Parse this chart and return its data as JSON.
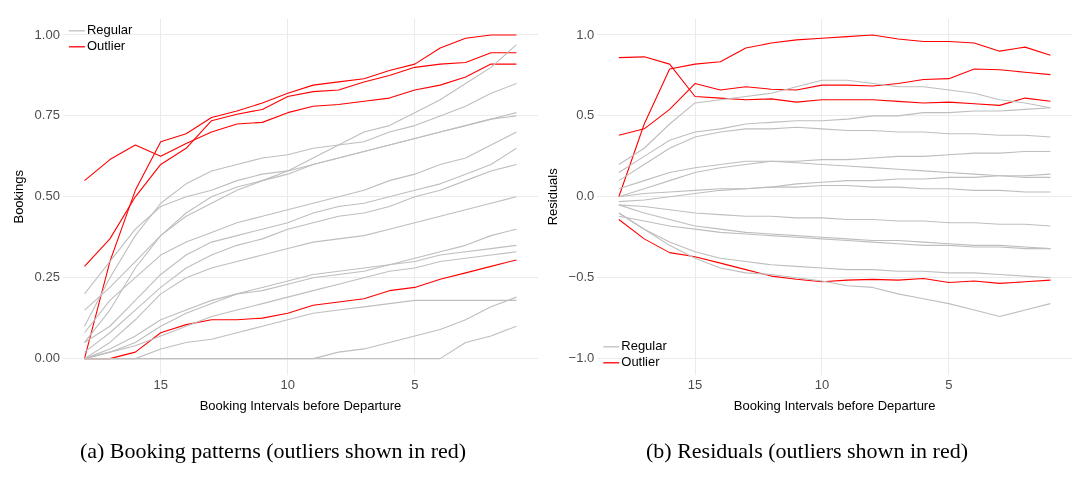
{
  "chart_data": [
    {
      "type": "line",
      "title": "(a) Booking patterns (outliers shown in red)",
      "xlabel": "Booking Intervals before Departure",
      "ylabel": "Bookings",
      "x": [
        18,
        17,
        16,
        15,
        14,
        13,
        12,
        11,
        10,
        9,
        8,
        7,
        6,
        5,
        4,
        3,
        2,
        1
      ],
      "xlim": [
        18.85,
        0.15
      ],
      "xticks": [
        15,
        10,
        5
      ],
      "ylim": [
        -0.05,
        1.05
      ],
      "yticks": [
        {
          "value": 0,
          "label": "0.00"
        },
        {
          "value": 0.25,
          "label": "0.25"
        },
        {
          "value": 0.5,
          "label": "0.50"
        },
        {
          "value": 0.75,
          "label": "0.75"
        },
        {
          "value": 1,
          "label": "1.00"
        }
      ],
      "grid": true,
      "legend": "top left",
      "marker": "none",
      "line_style": "solid",
      "series": [
        {
          "name": "Regular",
          "color": "#bebebe",
          "values": [
            0,
            0.05,
            0.12,
            0.2,
            0.25,
            0.28,
            0.3,
            0.32,
            0.34,
            0.36,
            0.37,
            0.38,
            0.4,
            0.42,
            0.44,
            0.46,
            0.48,
            0.5
          ]
        },
        {
          "color": "#bebebe",
          "values": [
            0.05,
            0.15,
            0.28,
            0.38,
            0.45,
            0.5,
            0.53,
            0.55,
            0.57,
            0.6,
            0.62,
            0.64,
            0.66,
            0.68,
            0.7,
            0.72,
            0.74,
            0.76
          ]
        },
        {
          "color": "#bebebe",
          "values": [
            0,
            0.02,
            0.05,
            0.1,
            0.14,
            0.17,
            0.2,
            0.22,
            0.24,
            0.26,
            0.27,
            0.28,
            0.29,
            0.3,
            0.32,
            0.33,
            0.34,
            0.35
          ]
        },
        {
          "color": "#bebebe",
          "values": [
            0.1,
            0.25,
            0.38,
            0.48,
            0.54,
            0.58,
            0.6,
            0.62,
            0.63,
            0.65,
            0.66,
            0.67,
            0.7,
            0.72,
            0.75,
            0.78,
            0.82,
            0.85
          ]
        },
        {
          "color": "#bebebe",
          "values": [
            0,
            0,
            0,
            0,
            0,
            0,
            0,
            0,
            0,
            0,
            0.02,
            0.03,
            0.05,
            0.07,
            0.09,
            0.12,
            0.16,
            0.19
          ]
        },
        {
          "color": "#bebebe",
          "values": [
            0.02,
            0.08,
            0.15,
            0.22,
            0.28,
            0.32,
            0.35,
            0.37,
            0.4,
            0.42,
            0.44,
            0.45,
            0.47,
            0.5,
            0.52,
            0.55,
            0.58,
            0.6
          ]
        },
        {
          "color": "#bebebe",
          "values": [
            0,
            0.03,
            0.07,
            0.12,
            0.15,
            0.18,
            0.2,
            0.21,
            0.23,
            0.25,
            0.26,
            0.27,
            0.29,
            0.31,
            0.33,
            0.35,
            0.38,
            0.4
          ]
        },
        {
          "color": "#bebebe",
          "values": [
            0.2,
            0.3,
            0.4,
            0.47,
            0.5,
            0.52,
            0.55,
            0.57,
            0.58,
            0.6,
            0.62,
            0.64,
            0.66,
            0.68,
            0.7,
            0.72,
            0.74,
            0.75
          ]
        },
        {
          "color": "#bebebe",
          "values": [
            0,
            0,
            0,
            0.03,
            0.05,
            0.06,
            0.08,
            0.1,
            0.12,
            0.14,
            0.15,
            0.16,
            0.17,
            0.18,
            0.18,
            0.18,
            0.18,
            0.18
          ]
        },
        {
          "color": "#bebebe",
          "values": [
            0.05,
            0.1,
            0.18,
            0.26,
            0.32,
            0.36,
            0.38,
            0.4,
            0.42,
            0.45,
            0.47,
            0.48,
            0.5,
            0.52,
            0.54,
            0.57,
            0.6,
            0.65
          ]
        },
        {
          "color": "#bebebe",
          "values": [
            0,
            0,
            0,
            0,
            0,
            0,
            0,
            0,
            0,
            0,
            0,
            0,
            0,
            0,
            0,
            0.05,
            0.07,
            0.1
          ]
        },
        {
          "color": "#bebebe",
          "values": [
            0.15,
            0.22,
            0.3,
            0.38,
            0.44,
            0.48,
            0.52,
            0.55,
            0.58,
            0.62,
            0.66,
            0.7,
            0.72,
            0.76,
            0.8,
            0.85,
            0.9,
            0.97
          ]
        },
        {
          "color": "#bebebe",
          "values": [
            0.08,
            0.18,
            0.25,
            0.32,
            0.36,
            0.39,
            0.42,
            0.44,
            0.46,
            0.48,
            0.5,
            0.52,
            0.55,
            0.57,
            0.6,
            0.62,
            0.66,
            0.7
          ]
        },
        {
          "color": "#bebebe",
          "values": [
            0,
            0.02,
            0.04,
            0.07,
            0.1,
            0.13,
            0.15,
            0.17,
            0.19,
            0.21,
            0.23,
            0.25,
            0.27,
            0.28,
            0.3,
            0.31,
            0.32,
            0.33
          ]
        },
        {
          "name": "Outlier",
          "color": "#ff0000",
          "values": [
            0.55,
            0.615,
            0.66,
            0.625,
            0.665,
            0.7,
            0.725,
            0.73,
            0.76,
            0.78,
            0.785,
            0.795,
            0.805,
            0.83,
            0.845,
            0.87,
            0.91,
            0.91
          ]
        },
        {
          "color": "#ff0000",
          "values": [
            0,
            0.3,
            0.52,
            0.67,
            0.695,
            0.745,
            0.765,
            0.79,
            0.82,
            0.845,
            0.855,
            0.865,
            0.89,
            0.91,
            0.96,
            0.99,
            1,
            1
          ]
        },
        {
          "color": "#ff0000",
          "values": [
            0.285,
            0.37,
            0.5,
            0.6,
            0.65,
            0.735,
            0.755,
            0.77,
            0.81,
            0.825,
            0.83,
            0.855,
            0.875,
            0.9,
            0.91,
            0.915,
            0.945,
            0.945
          ]
        },
        {
          "color": "#ff0000",
          "values": [
            0,
            0,
            0.02,
            0.08,
            0.105,
            0.12,
            0.12,
            0.125,
            0.14,
            0.165,
            0.175,
            0.185,
            0.21,
            0.22,
            0.245,
            0.265,
            0.285,
            0.305
          ]
        }
      ]
    },
    {
      "type": "line",
      "title": "(b) Residuals (outliers shown in red)",
      "xlabel": "Booking Intervals before Departure",
      "ylabel": "Residuals",
      "x": [
        18,
        17,
        16,
        15,
        14,
        13,
        12,
        11,
        10,
        9,
        8,
        7,
        6,
        5,
        4,
        3,
        2,
        1
      ],
      "xlim": [
        18.85,
        0.15
      ],
      "xticks": [
        15,
        10,
        5
      ],
      "ylim": [
        -1.1,
        1.1
      ],
      "yticks": [
        {
          "value": -1,
          "label": "−1.0"
        },
        {
          "value": -0.5,
          "label": "−0.5"
        },
        {
          "value": 0,
          "label": "0.0"
        },
        {
          "value": 0.5,
          "label": "0.5"
        },
        {
          "value": 1,
          "label": "1.0"
        }
      ],
      "grid": true,
      "legend": "bottom left",
      "marker": "none",
      "line_style": "solid",
      "series": [
        {
          "name": "Regular",
          "color": "#bebebe",
          "values": [
            0,
            0.05,
            0.1,
            0.15,
            0.18,
            0.2,
            0.22,
            0.22,
            0.23,
            0.23,
            0.24,
            0.25,
            0.25,
            0.26,
            0.27,
            0.27,
            0.28,
            0.28
          ]
        },
        {
          "color": "#bebebe",
          "values": [
            -0.05,
            -0.1,
            -0.14,
            -0.18,
            -0.2,
            -0.22,
            -0.23,
            -0.24,
            -0.25,
            -0.26,
            -0.27,
            -0.27,
            -0.28,
            -0.29,
            -0.3,
            -0.3,
            -0.31,
            -0.32
          ]
        },
        {
          "color": "#bebebe",
          "values": [
            0.1,
            0.2,
            0.3,
            0.37,
            0.4,
            0.42,
            0.42,
            0.43,
            0.42,
            0.41,
            0.41,
            0.4,
            0.4,
            0.39,
            0.39,
            0.38,
            0.38,
            0.37
          ]
        },
        {
          "color": "#bebebe",
          "values": [
            -0.1,
            -0.2,
            -0.28,
            -0.34,
            -0.38,
            -0.4,
            -0.42,
            -0.43,
            -0.44,
            -0.45,
            -0.45,
            -0.46,
            -0.46,
            -0.47,
            -0.47,
            -0.48,
            -0.49,
            -0.5
          ]
        },
        {
          "color": "#bebebe",
          "values": [
            0,
            0.02,
            0.03,
            0.04,
            0.05,
            0.05,
            0.06,
            0.06,
            0.07,
            0.07,
            0.06,
            0.06,
            0.05,
            0.05,
            0.04,
            0.04,
            0.03,
            0.03
          ]
        },
        {
          "color": "#bebebe",
          "values": [
            -0.05,
            -0.06,
            -0.08,
            -0.1,
            -0.11,
            -0.12,
            -0.12,
            -0.13,
            -0.13,
            -0.14,
            -0.14,
            -0.15,
            -0.15,
            -0.16,
            -0.16,
            -0.17,
            -0.17,
            -0.18
          ]
        },
        {
          "color": "#bebebe",
          "values": [
            0.2,
            0.3,
            0.45,
            0.58,
            0.6,
            0.62,
            0.64,
            0.68,
            0.72,
            0.72,
            0.7,
            0.68,
            0.68,
            0.66,
            0.64,
            0.6,
            0.58,
            0.55
          ]
        },
        {
          "color": "#bebebe",
          "values": [
            -0.1,
            -0.2,
            -0.3,
            -0.38,
            -0.44,
            -0.47,
            -0.48,
            -0.5,
            -0.52,
            -0.55,
            -0.56,
            -0.6,
            -0.63,
            -0.66,
            -0.7,
            -0.74,
            -0.7,
            -0.66
          ]
        },
        {
          "color": "#bebebe",
          "values": [
            0.05,
            0.1,
            0.15,
            0.18,
            0.2,
            0.22,
            0.22,
            0.21,
            0.2,
            0.19,
            0.18,
            0.17,
            0.16,
            0.15,
            0.14,
            0.13,
            0.12,
            0.12
          ]
        },
        {
          "color": "#bebebe",
          "values": [
            -0.12,
            -0.15,
            -0.18,
            -0.2,
            -0.22,
            -0.23,
            -0.24,
            -0.25,
            -0.26,
            -0.27,
            -0.28,
            -0.29,
            -0.3,
            -0.3,
            -0.31,
            -0.31,
            -0.32,
            -0.32
          ]
        },
        {
          "color": "#bebebe",
          "values": [
            0.15,
            0.25,
            0.35,
            0.4,
            0.42,
            0.45,
            0.46,
            0.47,
            0.47,
            0.48,
            0.5,
            0.5,
            0.52,
            0.52,
            0.53,
            0.53,
            0.54,
            0.55
          ]
        },
        {
          "color": "#bebebe",
          "values": [
            -0.03,
            -0.02,
            0,
            0.02,
            0.04,
            0.05,
            0.06,
            0.08,
            0.09,
            0.1,
            0.1,
            0.11,
            0.11,
            0.12,
            0.12,
            0.13,
            0.13,
            0.14
          ]
        },
        {
          "name": "Outlier",
          "color": "#ff0000",
          "values": [
            0.86,
            0.865,
            0.82,
            0.62,
            0.61,
            0.6,
            0.605,
            0.585,
            0.6,
            0.6,
            0.6,
            0.59,
            0.58,
            0.585,
            0.575,
            0.565,
            0.61,
            0.59
          ]
        },
        {
          "color": "#ff0000",
          "values": [
            0,
            0.45,
            0.79,
            0.82,
            0.835,
            0.92,
            0.95,
            0.97,
            0.98,
            0.99,
            1,
            0.975,
            0.96,
            0.96,
            0.95,
            0.9,
            0.925,
            0.875
          ]
        },
        {
          "color": "#ff0000",
          "values": [
            0.38,
            0.42,
            0.54,
            0.7,
            0.66,
            0.68,
            0.665,
            0.66,
            0.69,
            0.69,
            0.685,
            0.7,
            0.725,
            0.73,
            0.79,
            0.785,
            0.77,
            0.755
          ]
        },
        {
          "color": "#ff0000",
          "values": [
            -0.14,
            -0.26,
            -0.345,
            -0.37,
            -0.41,
            -0.45,
            -0.49,
            -0.51,
            -0.525,
            -0.515,
            -0.51,
            -0.515,
            -0.505,
            -0.53,
            -0.52,
            -0.535,
            -0.525,
            -0.515
          ]
        }
      ]
    }
  ]
}
